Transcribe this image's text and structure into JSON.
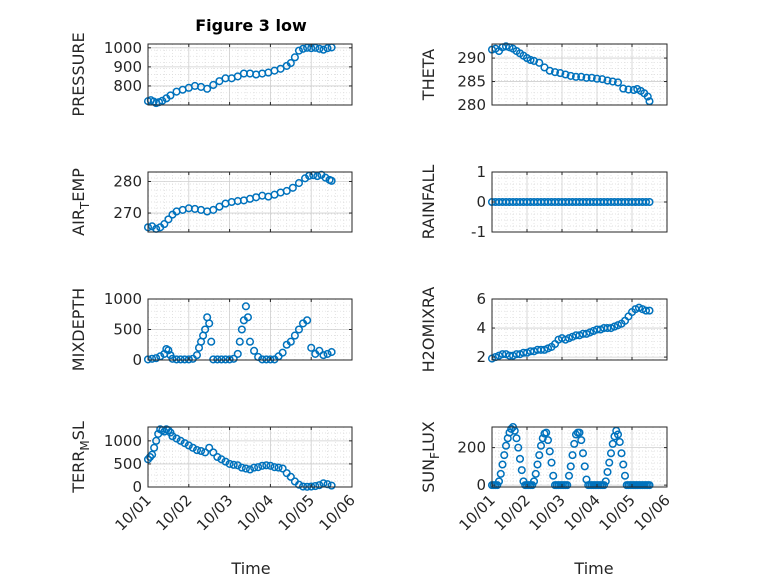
{
  "figure": {
    "title": "Figure 3 low",
    "x_label": "Time",
    "x_ticks": [
      "10/01",
      "10/02",
      "10/03",
      "10/04",
      "10/05",
      "10/06"
    ],
    "marker_color": "#0072BD",
    "axes_color": "#262626",
    "grid_color": "#d9d9d9"
  },
  "chart_data": [
    {
      "type": "scatter",
      "title": "Figure 3 low",
      "ylabel": "PRESSURE",
      "xlabel": "",
      "xlim": [
        0,
        5
      ],
      "ylim": [
        700,
        1020
      ],
      "y_ticks": [
        800,
        900,
        1000
      ],
      "grid": true,
      "x": [
        0.0,
        0.07,
        0.14,
        0.2,
        0.27,
        0.35,
        0.45,
        0.55,
        0.7,
        0.85,
        1.0,
        1.15,
        1.3,
        1.45,
        1.6,
        1.75,
        1.9,
        2.05,
        2.2,
        2.35,
        2.5,
        2.65,
        2.8,
        2.95,
        3.1,
        3.25,
        3.4,
        3.5,
        3.6,
        3.7,
        3.8,
        3.9,
        4.0,
        4.1,
        4.2,
        4.3,
        4.4,
        4.5
      ],
      "y": [
        720,
        725,
        718,
        710,
        715,
        722,
        735,
        750,
        770,
        780,
        790,
        800,
        795,
        785,
        805,
        825,
        840,
        840,
        850,
        865,
        865,
        860,
        865,
        870,
        880,
        890,
        905,
        920,
        950,
        985,
        995,
        1000,
        998,
        1000,
        995,
        990,
        998,
        1002
      ]
    },
    {
      "type": "scatter",
      "ylabel": "THETA",
      "xlabel": "",
      "xlim": [
        0,
        5
      ],
      "ylim": [
        280,
        293
      ],
      "y_ticks": [
        280,
        285,
        290
      ],
      "grid": true,
      "x": [
        0.0,
        0.1,
        0.2,
        0.3,
        0.4,
        0.5,
        0.6,
        0.7,
        0.8,
        0.9,
        1.0,
        1.1,
        1.2,
        1.35,
        1.5,
        1.65,
        1.8,
        1.95,
        2.1,
        2.25,
        2.4,
        2.55,
        2.7,
        2.85,
        3.0,
        3.15,
        3.3,
        3.45,
        3.6,
        3.75,
        3.9,
        4.05,
        4.15,
        4.25,
        4.35,
        4.45,
        4.5
      ],
      "y": [
        291.8,
        292.0,
        291.5,
        292.3,
        292.5,
        292.3,
        292.0,
        291.5,
        291.0,
        290.5,
        290.0,
        289.6,
        289.4,
        289.0,
        288.0,
        287.3,
        287.0,
        286.8,
        286.5,
        286.2,
        286.0,
        286.0,
        285.8,
        285.8,
        285.6,
        285.5,
        285.2,
        285.0,
        284.8,
        283.5,
        283.3,
        283.2,
        283.4,
        283.0,
        282.5,
        281.8,
        280.8
      ]
    },
    {
      "type": "scatter",
      "ylabel": "AIR_TEMP",
      "xlabel": "",
      "xlim": [
        0,
        5
      ],
      "ylim": [
        264,
        283
      ],
      "y_ticks": [
        270,
        280
      ],
      "grid": true,
      "x": [
        0.0,
        0.1,
        0.2,
        0.3,
        0.4,
        0.5,
        0.6,
        0.7,
        0.85,
        1.0,
        1.15,
        1.3,
        1.45,
        1.6,
        1.75,
        1.9,
        2.05,
        2.2,
        2.35,
        2.5,
        2.65,
        2.8,
        2.95,
        3.1,
        3.25,
        3.4,
        3.55,
        3.7,
        3.85,
        3.95,
        4.05,
        4.15,
        4.25,
        4.35,
        4.45,
        4.5
      ],
      "y": [
        265.5,
        265.8,
        265.0,
        265.5,
        266.5,
        268.0,
        269.5,
        270.5,
        271.0,
        271.5,
        271.3,
        271.0,
        270.5,
        271.0,
        272.0,
        273.0,
        273.5,
        273.8,
        274.0,
        274.5,
        275.0,
        275.5,
        275.2,
        275.8,
        276.5,
        277.0,
        278.0,
        279.5,
        281.0,
        281.8,
        282.0,
        281.7,
        282.1,
        281.2,
        280.5,
        280.2
      ]
    },
    {
      "type": "scatter",
      "ylabel": "RAINFALL",
      "xlabel": "",
      "xlim": [
        0,
        5
      ],
      "ylim": [
        -1,
        1
      ],
      "y_ticks": [
        -1,
        0,
        1
      ],
      "grid": true,
      "x": [
        0.0,
        0.1,
        0.2,
        0.3,
        0.4,
        0.5,
        0.6,
        0.7,
        0.8,
        0.9,
        1.0,
        1.1,
        1.2,
        1.3,
        1.4,
        1.5,
        1.6,
        1.7,
        1.8,
        1.9,
        2.0,
        2.1,
        2.2,
        2.3,
        2.4,
        2.5,
        2.6,
        2.7,
        2.8,
        2.9,
        3.0,
        3.1,
        3.2,
        3.3,
        3.4,
        3.5,
        3.6,
        3.7,
        3.8,
        3.9,
        4.0,
        4.1,
        4.2,
        4.3,
        4.4,
        4.5
      ],
      "y": [
        0,
        0,
        0,
        0,
        0,
        0,
        0,
        0,
        0,
        0,
        0,
        0,
        0,
        0,
        0,
        0,
        0,
        0,
        0,
        0,
        0,
        0,
        0,
        0,
        0,
        0,
        0,
        0,
        0,
        0,
        0,
        0,
        0,
        0,
        0,
        0,
        0,
        0,
        0,
        0,
        0,
        0,
        0,
        0,
        0,
        0
      ]
    },
    {
      "type": "scatter",
      "ylabel": "MIXDEPTH",
      "xlabel": "",
      "xlim": [
        0,
        5
      ],
      "ylim": [
        0,
        1000
      ],
      "y_ticks": [
        0,
        500,
        1000
      ],
      "grid": true,
      "x": [
        0.0,
        0.1,
        0.2,
        0.3,
        0.4,
        0.45,
        0.5,
        0.55,
        0.6,
        0.7,
        0.8,
        0.9,
        1.0,
        1.1,
        1.2,
        1.25,
        1.3,
        1.35,
        1.4,
        1.45,
        1.5,
        1.55,
        1.6,
        1.7,
        1.8,
        1.9,
        2.0,
        2.1,
        2.2,
        2.25,
        2.3,
        2.35,
        2.4,
        2.45,
        2.5,
        2.6,
        2.7,
        2.8,
        2.9,
        3.0,
        3.1,
        3.2,
        3.3,
        3.4,
        3.5,
        3.6,
        3.7,
        3.8,
        3.9,
        4.0,
        4.1,
        4.2,
        4.3,
        4.4,
        4.5
      ],
      "y": [
        10,
        20,
        30,
        60,
        100,
        180,
        160,
        80,
        20,
        10,
        10,
        10,
        10,
        20,
        80,
        200,
        300,
        400,
        500,
        700,
        600,
        300,
        10,
        10,
        10,
        10,
        10,
        20,
        100,
        300,
        500,
        650,
        880,
        700,
        300,
        150,
        50,
        10,
        10,
        10,
        10,
        60,
        120,
        250,
        300,
        400,
        500,
        600,
        650,
        200,
        100,
        150,
        80,
        100,
        130
      ]
    },
    {
      "type": "scatter",
      "ylabel": "H2OMIXRA",
      "xlabel": "",
      "xlim": [
        0,
        5
      ],
      "ylim": [
        1.8,
        6
      ],
      "y_ticks": [
        2,
        4,
        6
      ],
      "grid": true,
      "x": [
        0.0,
        0.1,
        0.2,
        0.3,
        0.4,
        0.5,
        0.6,
        0.7,
        0.8,
        0.9,
        1.0,
        1.1,
        1.2,
        1.3,
        1.4,
        1.5,
        1.6,
        1.7,
        1.8,
        1.9,
        2.0,
        2.1,
        2.2,
        2.3,
        2.4,
        2.5,
        2.6,
        2.7,
        2.8,
        2.9,
        3.0,
        3.1,
        3.2,
        3.3,
        3.4,
        3.5,
        3.6,
        3.7,
        3.8,
        3.9,
        4.0,
        4.1,
        4.2,
        4.3,
        4.4,
        4.5
      ],
      "y": [
        1.9,
        2.0,
        2.1,
        2.2,
        2.2,
        2.1,
        2.1,
        2.2,
        2.2,
        2.3,
        2.3,
        2.4,
        2.4,
        2.5,
        2.5,
        2.5,
        2.6,
        2.7,
        2.9,
        3.2,
        3.3,
        3.2,
        3.3,
        3.4,
        3.5,
        3.5,
        3.6,
        3.6,
        3.7,
        3.8,
        3.9,
        3.9,
        4.0,
        4.0,
        4.0,
        4.1,
        4.2,
        4.3,
        4.5,
        4.8,
        5.1,
        5.3,
        5.4,
        5.3,
        5.2,
        5.2
      ]
    },
    {
      "type": "scatter",
      "ylabel": "TERR_MSL",
      "xlabel": "Time",
      "xlim": [
        0,
        5
      ],
      "ylim": [
        0,
        1300
      ],
      "y_ticks": [
        0,
        500,
        1000
      ],
      "x_ticks": [
        "10/01",
        "10/02",
        "10/03",
        "10/04",
        "10/05",
        "10/06"
      ],
      "grid": true,
      "x": [
        0.0,
        0.05,
        0.1,
        0.15,
        0.2,
        0.25,
        0.3,
        0.35,
        0.4,
        0.45,
        0.5,
        0.55,
        0.6,
        0.7,
        0.8,
        0.9,
        1.0,
        1.1,
        1.2,
        1.3,
        1.4,
        1.5,
        1.6,
        1.7,
        1.8,
        1.9,
        2.0,
        2.1,
        2.2,
        2.3,
        2.4,
        2.5,
        2.6,
        2.7,
        2.8,
        2.9,
        3.0,
        3.1,
        3.2,
        3.3,
        3.4,
        3.5,
        3.6,
        3.7,
        3.8,
        3.9,
        4.0,
        4.1,
        4.2,
        4.3,
        4.4,
        4.5
      ],
      "y": [
        600,
        650,
        700,
        850,
        1000,
        1150,
        1250,
        1230,
        1200,
        1250,
        1230,
        1180,
        1100,
        1050,
        1000,
        950,
        900,
        850,
        800,
        780,
        750,
        850,
        750,
        650,
        600,
        550,
        500,
        480,
        470,
        420,
        400,
        380,
        420,
        430,
        460,
        470,
        460,
        430,
        420,
        400,
        300,
        220,
        120,
        50,
        10,
        5,
        10,
        20,
        40,
        80,
        60,
        30
      ]
    },
    {
      "type": "scatter",
      "ylabel": "SUN_FLUX",
      "xlabel": "Time",
      "xlim": [
        0,
        5
      ],
      "ylim": [
        -10,
        310
      ],
      "y_ticks": [
        0,
        200
      ],
      "x_ticks": [
        "10/01",
        "10/02",
        "10/03",
        "10/04",
        "10/05",
        "10/06"
      ],
      "grid": true,
      "x": [
        0.0,
        0.05,
        0.1,
        0.15,
        0.2,
        0.25,
        0.3,
        0.35,
        0.4,
        0.45,
        0.5,
        0.55,
        0.6,
        0.65,
        0.7,
        0.75,
        0.8,
        0.85,
        0.9,
        0.95,
        1.0,
        1.05,
        1.1,
        1.15,
        1.2,
        1.25,
        1.3,
        1.35,
        1.4,
        1.45,
        1.5,
        1.55,
        1.6,
        1.65,
        1.7,
        1.75,
        1.8,
        1.85,
        1.9,
        1.95,
        2.0,
        2.05,
        2.1,
        2.15,
        2.2,
        2.25,
        2.3,
        2.35,
        2.4,
        2.45,
        2.5,
        2.55,
        2.6,
        2.65,
        2.7,
        2.75,
        2.8,
        2.85,
        2.9,
        2.95,
        3.0,
        3.05,
        3.1,
        3.15,
        3.2,
        3.25,
        3.3,
        3.35,
        3.4,
        3.45,
        3.5,
        3.55,
        3.6,
        3.65,
        3.7,
        3.75,
        3.8,
        3.85,
        3.9,
        3.95,
        4.0,
        4.05,
        4.1,
        4.15,
        4.2,
        4.25,
        4.3,
        4.35,
        4.4,
        4.45,
        4.5
      ],
      "y": [
        0,
        0,
        0,
        0,
        20,
        60,
        110,
        160,
        210,
        250,
        280,
        300,
        310,
        290,
        250,
        200,
        140,
        80,
        20,
        0,
        0,
        0,
        0,
        0,
        20,
        60,
        110,
        160,
        210,
        250,
        275,
        280,
        240,
        180,
        120,
        50,
        0,
        0,
        0,
        0,
        0,
        0,
        0,
        0,
        50,
        100,
        160,
        220,
        270,
        280,
        280,
        240,
        170,
        100,
        30,
        0,
        0,
        0,
        0,
        0,
        0,
        0,
        0,
        0,
        0,
        20,
        70,
        120,
        170,
        220,
        260,
        290,
        270,
        230,
        170,
        110,
        50,
        0,
        0,
        0,
        0,
        0,
        0,
        0,
        0,
        0,
        0,
        0,
        0,
        0,
        0
      ]
    }
  ]
}
